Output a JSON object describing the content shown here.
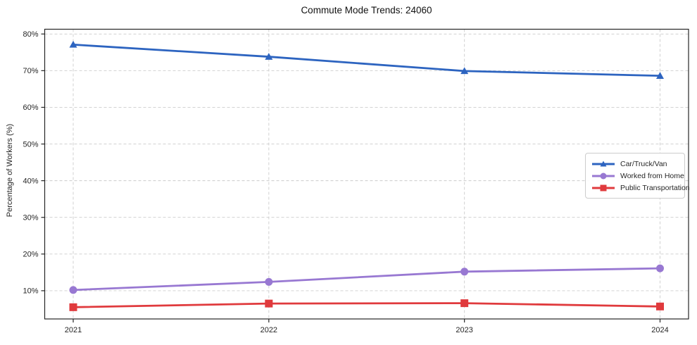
{
  "title": "Commute Mode Trends: 24060",
  "chart_data": {
    "type": "line",
    "title": "Commute Mode Trends: 24060",
    "categories": [
      "2021",
      "2022",
      "2023",
      "2024"
    ],
    "x": [
      2021,
      2022,
      2023,
      2024
    ],
    "series": [
      {
        "name": "Car/Truck/Van",
        "color": "#2d64c0",
        "marker": "triangle",
        "values": [
          77.1,
          73.8,
          69.9,
          68.6
        ]
      },
      {
        "name": "Worked from Home",
        "color": "#9878d2",
        "marker": "circle",
        "values": [
          10.2,
          12.4,
          15.2,
          16.1
        ]
      },
      {
        "name": "Public Transportation",
        "color": "#e03a3d",
        "marker": "square",
        "values": [
          5.5,
          6.5,
          6.6,
          5.7
        ]
      }
    ],
    "xlabel": "",
    "ylabel": "Percentage of Workers (%)",
    "ylim": [
      2.3,
      81.3
    ],
    "yticks": [
      10,
      20,
      30,
      40,
      50,
      60,
      70,
      80
    ],
    "ytick_format": "{v}%",
    "grid": true,
    "grid_style": "dashed",
    "grid_color": "#cccccc",
    "frame_color": "#262626",
    "legend_position": "right-middle"
  }
}
